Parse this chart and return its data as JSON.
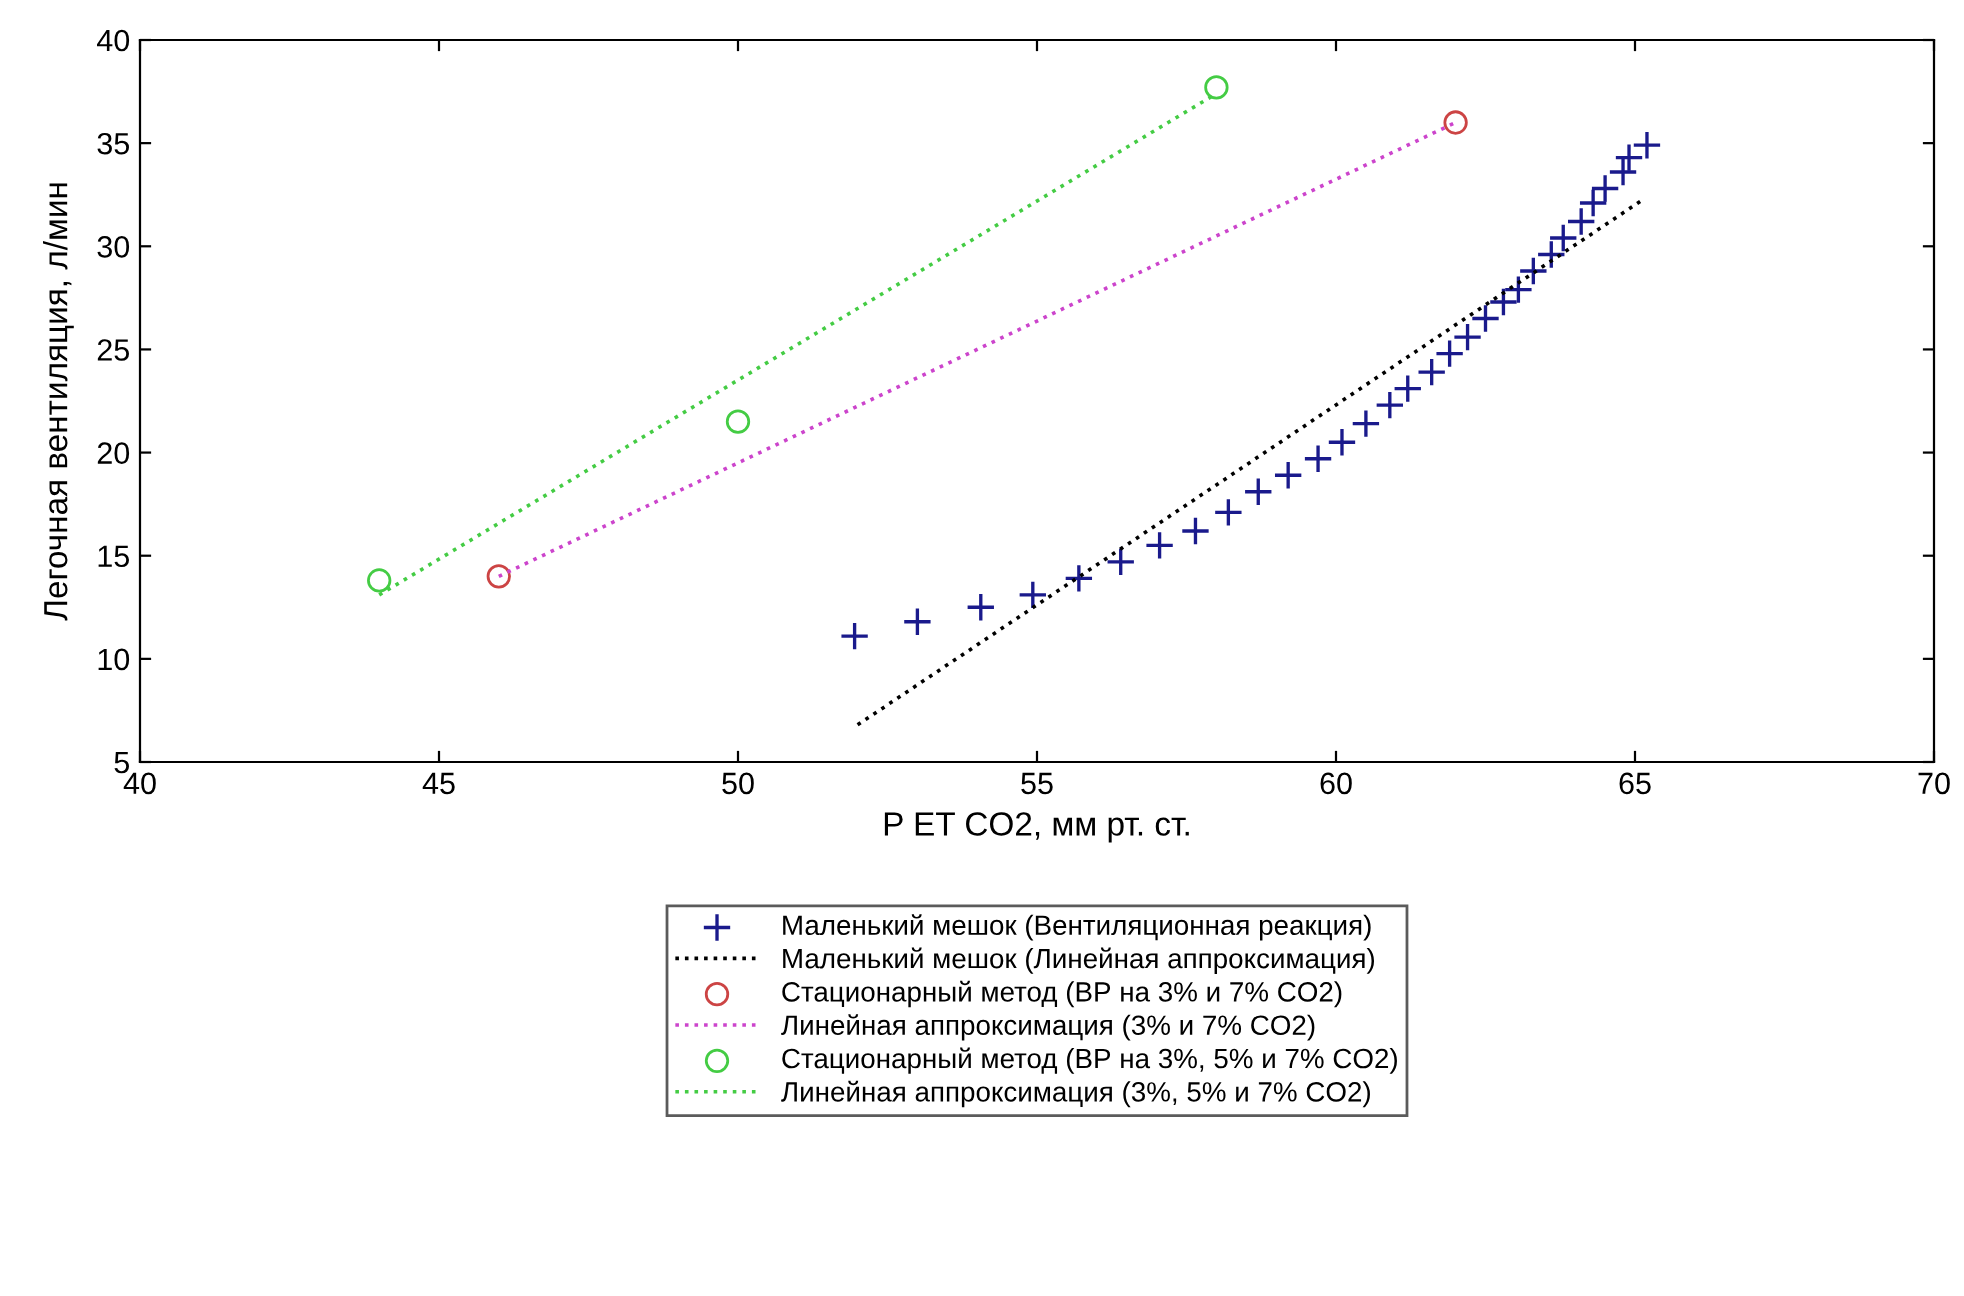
{
  "chart_data": {
    "type": "scatter",
    "xlabel": "P ET CO2, мм рт. ст.",
    "ylabel": "Легочная вентиляция, л/мин",
    "xlim": [
      40,
      70
    ],
    "xticks": [
      40,
      45,
      50,
      55,
      60,
      65,
      70
    ],
    "ylim": [
      5,
      40
    ],
    "yticks": [
      5,
      10,
      15,
      20,
      25,
      30,
      35,
      40
    ],
    "grid": false,
    "legend": "bottom",
    "series": [
      {
        "name": "Маленький мешок (Вентиляционная реакция)",
        "marker": "cross",
        "color": "#1a1a8c",
        "x": [
          51.95,
          53.0,
          54.06,
          54.93,
          55.7,
          56.4,
          57.05,
          57.65,
          58.2,
          58.7,
          59.2,
          59.7,
          60.1,
          60.5,
          60.9,
          61.2,
          61.6,
          61.9,
          62.2,
          62.5,
          62.8,
          63.05,
          63.3,
          63.6,
          63.8,
          64.1,
          64.3,
          64.5,
          64.8,
          64.9,
          65.2
        ],
        "values": [
          11.1,
          11.8,
          12.5,
          13.1,
          13.9,
          14.7,
          15.5,
          16.2,
          17.1,
          18.1,
          18.9,
          19.7,
          20.5,
          21.4,
          22.3,
          23.1,
          23.9,
          24.8,
          25.6,
          26.5,
          27.3,
          27.9,
          28.8,
          29.6,
          30.4,
          31.2,
          32.1,
          32.8,
          33.6,
          34.3,
          34.9
        ]
      },
      {
        "name": "Маленький мешок (Линейная аппроксимация)",
        "type": "line",
        "line_style": "dotted",
        "color": "#000000",
        "x": [
          52,
          65.1
        ],
        "values": [
          6.8,
          32.2
        ]
      },
      {
        "name": "Стационарный метод (ВР на 3% и 7% CO2)",
        "marker": "circle",
        "color": "#cc4444",
        "x": [
          46.0,
          62.0
        ],
        "values": [
          14.0,
          36.0
        ]
      },
      {
        "name": "Линейная аппроксимация (3% и 7% CO2)",
        "type": "line",
        "line_style": "dotted",
        "color": "#cc44cc",
        "x": [
          46.0,
          62.0
        ],
        "values": [
          14.0,
          36.0
        ]
      },
      {
        "name": "Стационарный метод (ВР на 3%, 5% и 7% CO2)",
        "marker": "circle",
        "color": "#44cc44",
        "x": [
          44.0,
          50.0,
          58.0
        ],
        "values": [
          13.8,
          21.5,
          37.7
        ]
      },
      {
        "name": "Линейная аппроксимация (3%, 5% и 7% CO2)",
        "type": "line",
        "line_style": "dotted",
        "color": "#44cc44",
        "x": [
          44.0,
          58.0
        ],
        "values": [
          13.1,
          37.4
        ]
      }
    ]
  }
}
